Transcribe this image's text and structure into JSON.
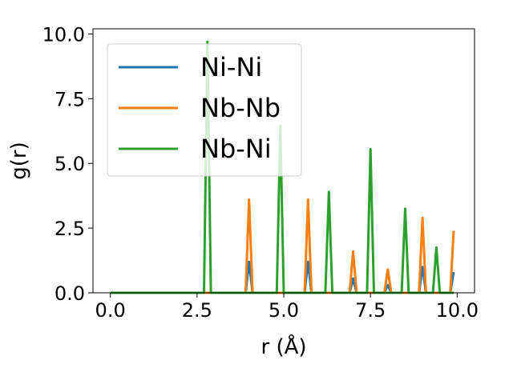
{
  "chart_data": {
    "type": "line",
    "xlabel": "r (Å)",
    "ylabel": "g(r)",
    "xlim": [
      -0.5,
      10.5
    ],
    "ylim": [
      0,
      10.2
    ],
    "xticks": [
      0.0,
      2.5,
      5.0,
      7.5,
      10.0
    ],
    "yticks": [
      0.0,
      2.5,
      5.0,
      7.5,
      10.0
    ],
    "xtick_labels": [
      "0.0",
      "2.5",
      "5.0",
      "7.5",
      "10.0"
    ],
    "ytick_labels": [
      "0.0",
      "2.5",
      "5.0",
      "7.5",
      "10.0"
    ],
    "grid": false,
    "legend_position": "upper-left",
    "series": [
      {
        "name": "Ni-Ni",
        "color": "#1f77b4",
        "x": [
          0.0,
          3.9,
          4.0,
          4.1,
          5.6,
          5.7,
          5.8,
          6.9,
          7.0,
          7.1,
          7.9,
          8.0,
          8.1,
          8.9,
          9.0,
          9.1,
          9.8,
          9.9
        ],
        "y": [
          0.0,
          0.0,
          1.2,
          0.0,
          0.0,
          1.2,
          0.0,
          0.0,
          0.55,
          0.0,
          0.0,
          0.3,
          0.0,
          0.0,
          1.0,
          0.0,
          0.0,
          0.8
        ]
      },
      {
        "name": "Nb-Nb",
        "color": "#ff7f0e",
        "x": [
          0.0,
          3.9,
          4.0,
          4.1,
          5.6,
          5.7,
          5.8,
          6.9,
          7.0,
          7.1,
          7.9,
          8.0,
          8.1,
          8.9,
          9.0,
          9.1,
          9.8,
          9.9
        ],
        "y": [
          0.0,
          0.0,
          3.6,
          0.0,
          0.0,
          3.6,
          0.0,
          0.0,
          1.6,
          0.0,
          0.0,
          0.9,
          0.0,
          0.0,
          2.9,
          0.0,
          0.0,
          2.4
        ]
      },
      {
        "name": "Nb-Ni",
        "color": "#2ca02c",
        "x": [
          0.0,
          2.7,
          2.8,
          2.9,
          4.8,
          4.9,
          5.0,
          6.2,
          6.3,
          6.4,
          7.4,
          7.5,
          7.6,
          8.4,
          8.5,
          8.6,
          9.3,
          9.4,
          9.5,
          9.9
        ],
        "y": [
          0.0,
          0.0,
          9.7,
          0.0,
          0.0,
          6.45,
          0.0,
          0.0,
          3.9,
          0.0,
          0.0,
          5.55,
          0.0,
          0.0,
          3.25,
          0.0,
          0.0,
          1.75,
          0.0,
          0.0
        ]
      }
    ]
  }
}
